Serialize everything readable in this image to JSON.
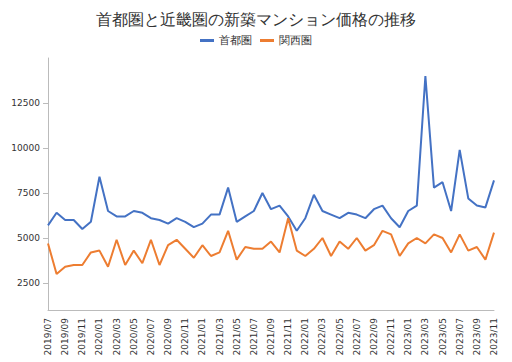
{
  "chart_data": {
    "type": "line",
    "title": "首都圏と近畿圏の新築マンション価格の推移",
    "categories": [
      "2019/07",
      null,
      "2019/09",
      null,
      "2019/11",
      null,
      "2020/01",
      null,
      "2020/03",
      null,
      "2020/05",
      null,
      "2020/07",
      null,
      "2020/09",
      null,
      "2020/11",
      null,
      "2021/01",
      null,
      "2021/03",
      null,
      "2021/05",
      null,
      "2021/07",
      null,
      "2021/09",
      null,
      "2021/11",
      null,
      "2022/01",
      null,
      "2022/03",
      null,
      "2022/05",
      null,
      "2022/07",
      null,
      "2022/09",
      null,
      "2022/11",
      null,
      "2023/01",
      null,
      "2023/03",
      null,
      "2023/05",
      null,
      "2023/07",
      null,
      "2023/09",
      null,
      "2023/11"
    ],
    "series": [
      {
        "name": "首都圏",
        "color": "#4472c4",
        "values": [
          5700,
          6400,
          6000,
          6000,
          5500,
          5900,
          8400,
          6500,
          6200,
          6200,
          6500,
          6400,
          6100,
          6000,
          5800,
          6100,
          5900,
          5600,
          5800,
          6300,
          6300,
          7800,
          5900,
          6200,
          6500,
          7500,
          6600,
          6800,
          6200,
          5400,
          6100,
          7400,
          6500,
          6300,
          6100,
          6400,
          6300,
          6100,
          6600,
          6800,
          6100,
          5600,
          6500,
          6800,
          14000,
          7800,
          8100,
          6500,
          9900,
          7200,
          6800,
          6700,
          8200
        ]
      },
      {
        "name": "関西圏",
        "color": "#ed7d31",
        "values": [
          4700,
          3000,
          3400,
          3500,
          3500,
          4200,
          4300,
          3400,
          4900,
          3500,
          4300,
          3600,
          4900,
          3500,
          4600,
          4900,
          4400,
          3900,
          4600,
          4000,
          4200,
          5400,
          3800,
          4500,
          4400,
          4400,
          4800,
          4200,
          6100,
          4300,
          4000,
          4400,
          5000,
          4000,
          4800,
          4400,
          5000,
          4300,
          4600,
          5400,
          5200,
          4000,
          4700,
          5000,
          4700,
          5200,
          5000,
          4200,
          5200,
          4300,
          4500,
          3800,
          5300
        ]
      }
    ],
    "ylim": [
      1000,
      15000
    ],
    "yticks": [
      2500,
      5000,
      7500,
      10000,
      12500
    ],
    "grid": false,
    "legend": "top"
  }
}
